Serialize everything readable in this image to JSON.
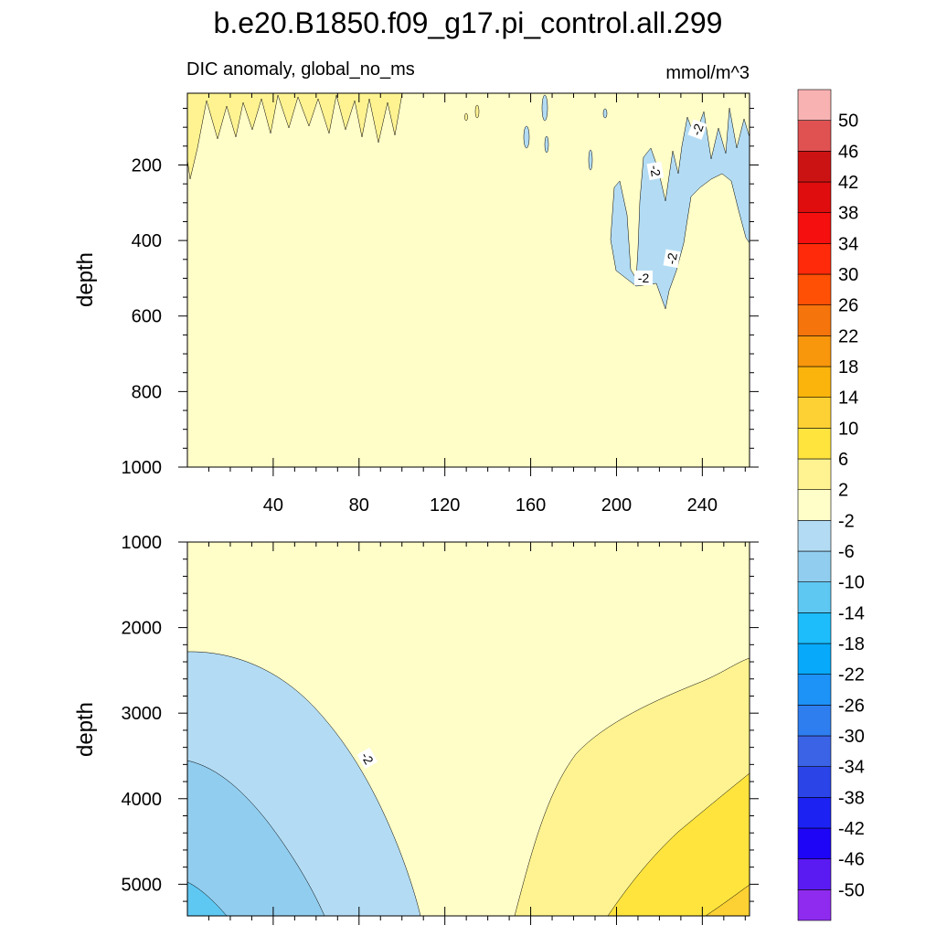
{
  "title": "b.e20.B1850.f09_g17.pi_control.all.299",
  "subtitle_left": "DIC anomaly, global_no_ms",
  "subtitle_right": "mmol/m^3",
  "colorbar": {
    "colors": [
      "#8e2bef",
      "#5a1af2",
      "#1e05f5",
      "#1b22f2",
      "#2a44e8",
      "#3b63e6",
      "#2f7ef0",
      "#1d92f7",
      "#07a9fb",
      "#1cbdfa",
      "#5ec8f3",
      "#91cdee",
      "#b3dcf4",
      "#fffdc8",
      "#fff391",
      "#ffe43e",
      "#fdd133",
      "#fbb40c",
      "#f8960c",
      "#f6740c",
      "#ff5005",
      "#ff2a0a",
      "#f50f0f",
      "#df0d0d",
      "#cc1313",
      "#e05252",
      "#f9b2b2"
    ],
    "labels": [
      "-50",
      "-46",
      "-42",
      "-38",
      "-34",
      "-30",
      "-26",
      "-22",
      "-18",
      "-14",
      "-10",
      "-6",
      "-2",
      "2",
      "6",
      "10",
      "14",
      "18",
      "22",
      "26",
      "30",
      "34",
      "38",
      "42",
      "46",
      "50"
    ]
  },
  "chart_data": [
    {
      "type": "heatmap",
      "panel": "upper",
      "ylabel": "depth",
      "xlim": [
        0,
        262
      ],
      "ylim": [
        1000,
        10
      ],
      "xticks": [
        40,
        80,
        120,
        160,
        200,
        240
      ],
      "xtick_labels": [
        "40",
        "80",
        "120",
        "160",
        "200",
        "240"
      ],
      "yticks": [
        200,
        400,
        600,
        800,
        1000
      ],
      "ytick_labels": [
        "200",
        "400",
        "600",
        "800",
        "1000"
      ],
      "contour_levels": [
        -50,
        -46,
        -42,
        -38,
        -34,
        -30,
        -26,
        -22,
        -18,
        -14,
        -10,
        -6,
        -2,
        2,
        6,
        10,
        14,
        18,
        22,
        26,
        30,
        34,
        38,
        42,
        46,
        50
      ],
      "background_range": [
        -2,
        2
      ],
      "regions": [
        {
          "range": [
            2,
            6
          ],
          "x": [
            0,
            97
          ],
          "depth": [
            10,
            110
          ]
        },
        {
          "range": [
            -6,
            -2
          ],
          "x": [
            195,
            262
          ],
          "depth": [
            10,
            560
          ]
        }
      ],
      "contour_labels": [
        "-2",
        "-2",
        "-2",
        "-2"
      ]
    },
    {
      "type": "heatmap",
      "panel": "lower",
      "ylabel": "depth",
      "xlim": [
        0,
        262
      ],
      "ylim": [
        5370,
        1000
      ],
      "yticks": [
        1000,
        2000,
        3000,
        4000,
        5000
      ],
      "ytick_labels": [
        "1000",
        "2000",
        "3000",
        "4000",
        "5000"
      ],
      "background_range": [
        -2,
        2
      ],
      "regions": [
        {
          "range": [
            -6,
            -2
          ],
          "side": "left",
          "depth": [
            2250,
            5370
          ]
        },
        {
          "range": [
            -10,
            -6
          ],
          "side": "left",
          "depth": [
            3530,
            5370
          ]
        },
        {
          "range": [
            -14,
            -10
          ],
          "side": "left",
          "depth": [
            4950,
            5370
          ]
        },
        {
          "range": [
            2,
            6
          ],
          "side": "right",
          "depth": [
            2350,
            5370
          ]
        },
        {
          "range": [
            6,
            10
          ],
          "side": "right",
          "depth": [
            3700,
            5370
          ]
        },
        {
          "range": [
            10,
            14
          ],
          "side": "right",
          "depth": [
            5000,
            5370
          ]
        }
      ],
      "contour_labels": [
        "-2"
      ]
    }
  ]
}
